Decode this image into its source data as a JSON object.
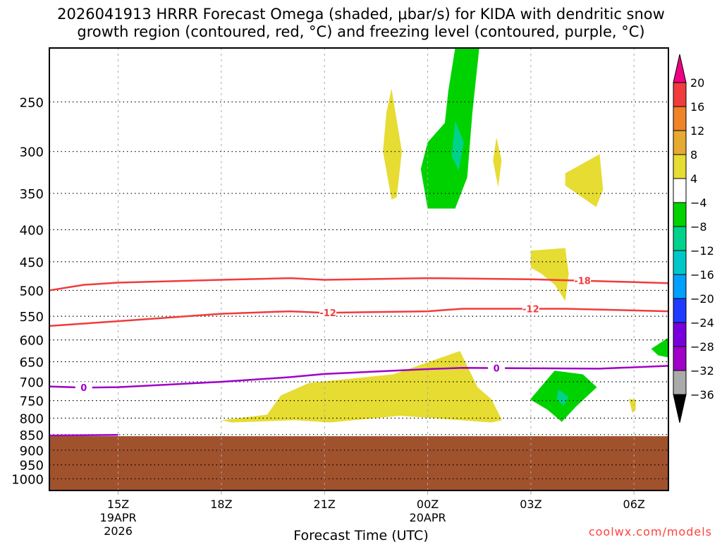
{
  "chart_data": {
    "type": "area",
    "title": [
      "2026041913 HRRR Forecast Omega (shaded, μbar/s) for KIDA with dendritic snow",
      "growth region (contoured, red, °C) and freezing level (contoured, purple, °C)"
    ],
    "xlabel": "Forecast Time (UTC)",
    "ylabel": "",
    "xlim_hours": [
      13,
      31
    ],
    "ylim_hpa": [
      205,
      1044
    ],
    "y_scale": "log",
    "grid": true,
    "xticks": [
      {
        "h": 15,
        "label": [
          "15Z",
          "19APR",
          "2026"
        ]
      },
      {
        "h": 18,
        "label": [
          "18Z"
        ]
      },
      {
        "h": 21,
        "label": [
          "21Z"
        ]
      },
      {
        "h": 24,
        "label": [
          "00Z",
          "20APR"
        ]
      },
      {
        "h": 27,
        "label": [
          "03Z"
        ]
      },
      {
        "h": 30,
        "label": [
          "06Z"
        ]
      }
    ],
    "yticks": [
      250,
      300,
      350,
      400,
      450,
      500,
      550,
      600,
      650,
      700,
      750,
      800,
      850,
      900,
      950,
      1000
    ],
    "colorbar": {
      "levels": [
        "20",
        "16",
        "12",
        "8",
        "4",
        "-4",
        "-8",
        "-12",
        "-16",
        "-20",
        "-24",
        "-28",
        "-32",
        "-36"
      ],
      "colors": [
        "#f03c3c",
        "#f08228",
        "#e6aa32",
        "#e6dc32",
        "#ffffff",
        "#00d200",
        "#00d28c",
        "#00c8c8",
        "#00a0ff",
        "#1e3cff",
        "#7800dc",
        "#a000c8",
        "#aaaaaa"
      ],
      "top_arrow": "#f00082",
      "bottom_arrow": "#000000"
    },
    "terrain": {
      "surface_hpa": 855,
      "color": "#a0522d"
    },
    "shaded": [
      {
        "color": "#e6dc32",
        "pts": [
          [
            22.95,
            238
          ],
          [
            23.25,
            300
          ],
          [
            23.1,
            355
          ],
          [
            22.95,
            358
          ],
          [
            22.7,
            300
          ],
          [
            22.8,
            260
          ]
        ]
      },
      {
        "color": "#00d200",
        "pts": [
          [
            24.8,
            205
          ],
          [
            25.5,
            205
          ],
          [
            25.3,
            260
          ],
          [
            25.15,
            330
          ],
          [
            24.8,
            370
          ],
          [
            24.0,
            370
          ],
          [
            23.8,
            320
          ],
          [
            24.0,
            290
          ],
          [
            24.5,
            270
          ],
          [
            24.6,
            240
          ]
        ]
      },
      {
        "color": "#00d28c",
        "pts": [
          [
            24.8,
            268
          ],
          [
            25.05,
            290
          ],
          [
            24.9,
            322
          ],
          [
            24.7,
            305
          ]
        ]
      },
      {
        "color": "#e6dc32",
        "pts": [
          [
            26.0,
            285
          ],
          [
            26.15,
            310
          ],
          [
            26.05,
            342
          ],
          [
            25.9,
            310
          ]
        ]
      },
      {
        "color": "#e6dc32",
        "pts": [
          [
            28.0,
            325
          ],
          [
            29.0,
            303
          ],
          [
            29.1,
            345
          ],
          [
            28.9,
            368
          ],
          [
            28.0,
            340
          ]
        ]
      },
      {
        "color": "#e6dc32",
        "pts": [
          [
            27.0,
            432
          ],
          [
            28.0,
            428
          ],
          [
            28.1,
            470
          ],
          [
            28.0,
            520
          ],
          [
            27.7,
            490
          ],
          [
            27.3,
            470
          ],
          [
            27.0,
            460
          ]
        ]
      },
      {
        "color": "#00d200",
        "pts": [
          [
            30.5,
            620
          ],
          [
            31,
            595
          ],
          [
            31,
            640
          ],
          [
            30.7,
            635
          ]
        ]
      },
      {
        "color": "#e6dc32",
        "pts": [
          [
            18.0,
            806
          ],
          [
            19.33,
            790
          ],
          [
            19.73,
            736
          ],
          [
            20.55,
            703
          ],
          [
            23.0,
            681
          ],
          [
            24.94,
            625
          ],
          [
            25.45,
            714
          ],
          [
            25.86,
            747
          ],
          [
            26.16,
            806
          ],
          [
            25.86,
            813
          ],
          [
            23.2,
            793
          ],
          [
            21.16,
            813
          ],
          [
            20.14,
            806
          ],
          [
            18.3,
            813
          ]
        ]
      },
      {
        "color": "#00d200",
        "pts": [
          [
            26.98,
            747
          ],
          [
            27.69,
            672
          ],
          [
            28.51,
            681
          ],
          [
            28.92,
            714
          ],
          [
            28.31,
            767
          ],
          [
            27.9,
            811
          ],
          [
            27.49,
            776
          ]
        ]
      },
      {
        "color": "#00d28c",
        "pts": [
          [
            27.8,
            720
          ],
          [
            28.1,
            740
          ],
          [
            27.95,
            765
          ],
          [
            27.75,
            745
          ]
        ]
      },
      {
        "color": "#e6dc32",
        "pts": [
          [
            29.85,
            745
          ],
          [
            30.05,
            748
          ],
          [
            30.05,
            775
          ],
          [
            29.95,
            785
          ]
        ]
      }
    ],
    "contours": [
      {
        "value": "-18",
        "color": "#f03c3c",
        "pts": [
          [
            13,
            500
          ],
          [
            14,
            490
          ],
          [
            15,
            486
          ],
          [
            18,
            481
          ],
          [
            20,
            478
          ],
          [
            21,
            481
          ],
          [
            24,
            478
          ],
          [
            27,
            480
          ],
          [
            30,
            485
          ],
          [
            31,
            487
          ]
        ],
        "labels": [
          [
            28.5,
            482
          ]
        ]
      },
      {
        "value": "-12",
        "color": "#f03c3c",
        "pts": [
          [
            13,
            570
          ],
          [
            15,
            560
          ],
          [
            18,
            545
          ],
          [
            20,
            540
          ],
          [
            21,
            543
          ],
          [
            24,
            540
          ],
          [
            25,
            535
          ],
          [
            28,
            535
          ],
          [
            31,
            540
          ]
        ],
        "labels": [
          [
            21.1,
            543
          ],
          [
            27.0,
            535
          ]
        ]
      },
      {
        "value": "0",
        "color": "#a000c8",
        "pts": [
          [
            13,
            712
          ],
          [
            14,
            715
          ],
          [
            15,
            714
          ],
          [
            18,
            700
          ],
          [
            20,
            688
          ],
          [
            21,
            680
          ],
          [
            24,
            668
          ],
          [
            25,
            665
          ],
          [
            27,
            666
          ],
          [
            29,
            667
          ],
          [
            31,
            660
          ]
        ],
        "labels": [
          [
            14,
            715
          ],
          [
            26,
            665
          ]
        ]
      },
      {
        "value": "0",
        "color": "#a000c8",
        "pts": [
          [
            13,
            853
          ],
          [
            14,
            852
          ],
          [
            15,
            851
          ]
        ],
        "labels": []
      }
    ],
    "credit": "coolwx.com/models"
  }
}
